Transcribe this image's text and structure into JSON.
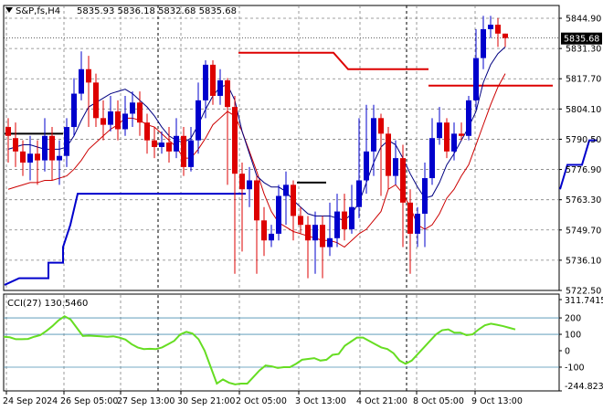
{
  "chart_data": [
    {
      "type": "candlestick",
      "symbol_label": "S&P,fs,H4",
      "ohlc_label": "5835.93 5836.18 5832.68 5835.68",
      "current_price_label": "5835.68",
      "ylim": [
        5722.5,
        5851.0
      ],
      "y_ticks": [
        "5844.90",
        "5831.30",
        "5817.70",
        "5804.10",
        "5790.50",
        "5776.90",
        "5763.30",
        "5749.70",
        "5736.10",
        "5722.50"
      ],
      "x_ticks": [
        "24 Sep 2024",
        "26 Sep 05:00",
        "27 Sep 13:00",
        "30 Sep 21:00",
        "2 Oct 05:00",
        "3 Oct 13:00",
        "4 Oct 21:00",
        "8 Oct 05:00",
        "9 Oct 13:00"
      ],
      "colors": {
        "up": "#0000cc",
        "down": "#dd0000",
        "ma_fast": "#000080",
        "ma_slow": "#cc0000",
        "upper_level": "#dd0000",
        "lower_level": "#0000cc",
        "grid": "#808080"
      },
      "candles": [
        [
          5796,
          5792,
          5800,
          5780
        ],
        [
          5791,
          5785,
          5798,
          5778
        ],
        [
          5785,
          5780,
          5790,
          5774
        ],
        [
          5780,
          5784,
          5792,
          5772
        ],
        [
          5784,
          5781,
          5790,
          5770
        ],
        [
          5781,
          5792,
          5800,
          5776
        ],
        [
          5792,
          5781,
          5796,
          5772
        ],
        [
          5781,
          5783,
          5790,
          5770
        ],
        [
          5783,
          5796,
          5800,
          5778
        ],
        [
          5796,
          5811,
          5818,
          5792
        ],
        [
          5811,
          5822,
          5830,
          5808
        ],
        [
          5822,
          5816,
          5828,
          5796
        ],
        [
          5816,
          5800,
          5820,
          5796
        ],
        [
          5800,
          5797,
          5808,
          5790
        ],
        [
          5797,
          5803,
          5810,
          5794
        ],
        [
          5803,
          5795,
          5808,
          5790
        ],
        [
          5795,
          5802,
          5810,
          5792
        ],
        [
          5802,
          5807,
          5812,
          5796
        ],
        [
          5807,
          5798,
          5812,
          5792
        ],
        [
          5798,
          5790,
          5802,
          5784
        ],
        [
          5790,
          5787,
          5796,
          5782
        ],
        [
          5787,
          5789,
          5794,
          5784
        ],
        [
          5789,
          5785,
          5796,
          5780
        ],
        [
          5785,
          5792,
          5800,
          5782
        ],
        [
          5792,
          5778,
          5796,
          5774
        ],
        [
          5778,
          5790,
          5796,
          5776
        ],
        [
          5790,
          5808,
          5816,
          5784
        ],
        [
          5808,
          5824,
          5826,
          5800
        ],
        [
          5824,
          5810,
          5826,
          5806
        ],
        [
          5810,
          5817,
          5822,
          5806
        ],
        [
          5817,
          5805,
          5818,
          5770
        ],
        [
          5805,
          5775,
          5810,
          5730
        ],
        [
          5775,
          5768,
          5780,
          5740
        ],
        [
          5768,
          5772,
          5778,
          5760
        ],
        [
          5772,
          5754,
          5774,
          5730
        ],
        [
          5754,
          5745,
          5760,
          5738
        ],
        [
          5745,
          5748,
          5752,
          5742
        ],
        [
          5748,
          5765,
          5770,
          5745
        ],
        [
          5765,
          5770,
          5776,
          5752
        ],
        [
          5770,
          5756,
          5772,
          5745
        ],
        [
          5756,
          5752,
          5760,
          5748
        ],
        [
          5752,
          5745,
          5756,
          5728
        ],
        [
          5745,
          5752,
          5758,
          5730
        ],
        [
          5752,
          5742,
          5756,
          5728
        ],
        [
          5742,
          5746,
          5762,
          5738
        ],
        [
          5746,
          5758,
          5766,
          5742
        ],
        [
          5758,
          5750,
          5766,
          5745
        ],
        [
          5750,
          5760,
          5770,
          5748
        ],
        [
          5760,
          5772,
          5800,
          5755
        ],
        [
          5772,
          5785,
          5806,
          5766
        ],
        [
          5785,
          5800,
          5806,
          5774
        ],
        [
          5800,
          5793,
          5802,
          5765
        ],
        [
          5793,
          5774,
          5796,
          5768
        ],
        [
          5774,
          5782,
          5790,
          5770
        ],
        [
          5782,
          5762,
          5788,
          5742
        ],
        [
          5762,
          5748,
          5768,
          5730
        ],
        [
          5748,
          5757,
          5760,
          5742
        ],
        [
          5757,
          5773,
          5780,
          5742
        ],
        [
          5773,
          5791,
          5800,
          5770
        ],
        [
          5791,
          5798,
          5805,
          5788
        ],
        [
          5798,
          5785,
          5800,
          5782
        ],
        [
          5785,
          5793,
          5798,
          5781
        ],
        [
          5793,
          5792,
          5798,
          5790
        ],
        [
          5792,
          5808,
          5810,
          5790
        ],
        [
          5808,
          5827,
          5840,
          5804
        ],
        [
          5827,
          5840,
          5846,
          5822
        ],
        [
          5840,
          5842,
          5846,
          5836
        ],
        [
          5842,
          5838,
          5845,
          5832
        ],
        [
          5838,
          5836,
          5838,
          5832
        ]
      ],
      "ma_fast": [
        5786,
        5787,
        5788,
        5788,
        5787,
        5786,
        5786,
        5786,
        5787,
        5792,
        5799,
        5805,
        5807,
        5809,
        5811,
        5812,
        5813,
        5811,
        5808,
        5805,
        5801,
        5796,
        5792,
        5790,
        5789,
        5791,
        5797,
        5804,
        5810,
        5814,
        5815,
        5808,
        5794,
        5784,
        5774,
        5771,
        5769,
        5769,
        5767,
        5763,
        5760,
        5757,
        5756,
        5756,
        5756,
        5755,
        5754,
        5757,
        5762,
        5771,
        5780,
        5787,
        5790,
        5788,
        5782,
        5775,
        5769,
        5764,
        5765,
        5771,
        5779,
        5784,
        5790,
        5796,
        5803,
        5816,
        5824,
        5829,
        5832
      ],
      "ma_slow": [
        5768,
        5769,
        5770,
        5771,
        5771,
        5772,
        5772,
        5773,
        5774,
        5777,
        5781,
        5786,
        5789,
        5792,
        5795,
        5797,
        5800,
        5800,
        5799,
        5797,
        5796,
        5793,
        5790,
        5787,
        5782,
        5782,
        5786,
        5791,
        5797,
        5800,
        5803,
        5801,
        5794,
        5785,
        5776,
        5766,
        5758,
        5753,
        5751,
        5749,
        5748,
        5747,
        5746,
        5745,
        5745,
        5744,
        5742,
        5745,
        5748,
        5750,
        5754,
        5758,
        5768,
        5770,
        5766,
        5760,
        5752,
        5750,
        5752,
        5757,
        5764,
        5768,
        5774,
        5779,
        5788,
        5797,
        5806,
        5814,
        5820
      ],
      "upper_level_segments": [
        [
          [
            32,
            5829.4
          ],
          [
            45,
            5829.4
          ],
          [
            47,
            5822.0
          ],
          [
            58,
            5822.0
          ]
        ],
        [
          [
            58,
            5814.6
          ],
          [
            75,
            5814.6
          ]
        ]
      ],
      "lower_level_segments": [
        [
          [
            0,
            5725
          ],
          [
            2,
            5728
          ],
          [
            6,
            5728
          ],
          [
            6,
            5735
          ],
          [
            8,
            5735
          ],
          [
            8,
            5742
          ],
          [
            9,
            5752
          ],
          [
            10,
            5766
          ],
          [
            11,
            5766
          ]
        ],
        [
          [
            11,
            5766
          ],
          [
            33,
            5766
          ]
        ],
        [
          [
            76,
            5768
          ],
          [
            77,
            5779
          ],
          [
            79,
            5779
          ],
          [
            80,
            5790
          ],
          [
            81,
            5790
          ]
        ]
      ],
      "black_level_segments": [
        [
          [
            0,
            5793
          ],
          [
            8,
            5793
          ]
        ],
        [
          [
            40,
            5771
          ],
          [
            44,
            5771
          ]
        ]
      ],
      "vlines_at_candle": [
        21,
        55
      ]
    },
    {
      "type": "line",
      "label": "CCI(27) 130.5460",
      "ylim": [
        -244.8232,
        311.7415
      ],
      "y_ticks": [
        "311.7415",
        "200",
        "100",
        "0",
        "-100",
        "-244.8232"
      ],
      "levels": [
        200,
        100,
        -100
      ],
      "cci_color": "#66dd22",
      "values": [
        85,
        82,
        70,
        70,
        72,
        85,
        95,
        120,
        150,
        185,
        210,
        190,
        140,
        90,
        92,
        90,
        88,
        85,
        88,
        80,
        68,
        40,
        20,
        10,
        12,
        10,
        20,
        40,
        60,
        100,
        115,
        105,
        70,
        0,
        -100,
        -200,
        -175,
        -195,
        -205,
        -200,
        -200,
        -160,
        -120,
        -90,
        -95,
        -105,
        -100,
        -100,
        -80,
        -55,
        -50,
        -45,
        -60,
        -55,
        -25,
        -20,
        30,
        55,
        80,
        80,
        60,
        40,
        20,
        10,
        -15,
        -60,
        -80,
        -60,
        -20,
        20,
        60,
        100,
        125,
        130,
        110,
        110,
        95,
        100,
        130,
        155,
        165,
        158,
        150,
        140,
        130
      ]
    }
  ]
}
